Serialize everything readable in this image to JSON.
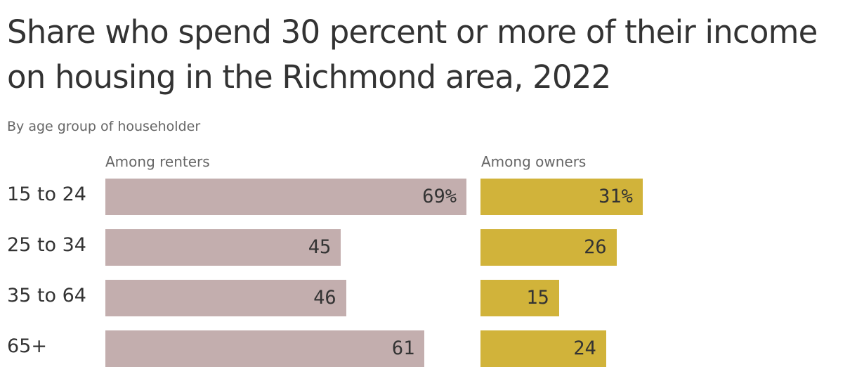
{
  "title": "Share who spend 30 percent or more of their income on housing in the Richmond area, 2022",
  "subtitle": "By age group of householder",
  "colors": {
    "renters": "#c3aeae",
    "owners": "#d1b33a"
  },
  "chart_data": [
    {
      "type": "bar",
      "orientation": "horizontal",
      "title": "Among renters",
      "categories": [
        "15 to 24",
        "25 to 34",
        "35 to 64",
        "65+"
      ],
      "values": [
        69,
        45,
        46,
        61
      ],
      "value_labels": [
        "69%",
        "45",
        "46",
        "61"
      ],
      "unit": "%",
      "xlim": [
        0,
        69
      ],
      "grid": false,
      "legend": "none"
    },
    {
      "type": "bar",
      "orientation": "horizontal",
      "title": "Among owners",
      "categories": [
        "15 to 24",
        "25 to 34",
        "35 to 64",
        "65+"
      ],
      "values": [
        31,
        26,
        15,
        24
      ],
      "value_labels": [
        "31%",
        "26",
        "15",
        "24"
      ],
      "unit": "%",
      "xlim": [
        0,
        69
      ],
      "grid": false,
      "legend": "none"
    }
  ]
}
